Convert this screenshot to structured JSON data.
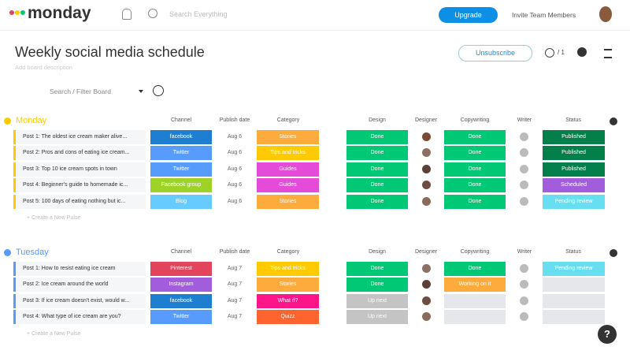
{
  "header": {
    "logo": "monday",
    "search_placeholder": "Search Everything",
    "upgrade": "Upgrade",
    "invite": "Invite Team Members"
  },
  "board": {
    "title": "Weekly social media schedule",
    "description": "Add board description",
    "unsubscribe": "Unsubscribe",
    "subscribers": "/ 1",
    "filter_placeholder": "Search / Filter Board"
  },
  "groups": [
    {
      "name": "Monday",
      "color": "#ffcb00",
      "columns": [
        "Channel",
        "Publish date",
        "Category",
        "Design",
        "Designer",
        "Copywriting",
        "Writer",
        "Status"
      ],
      "add": "+ Create a New Pulse",
      "rows": [
        {
          "name": "Post 1: The oldest ice cream maker alive...",
          "channel": {
            "text": "facebook",
            "color": "#1e7fd1"
          },
          "date": "Aug 6",
          "category": {
            "text": "Stories",
            "color": "#fdab3d"
          },
          "design": {
            "text": "Done",
            "color": "#00c875"
          },
          "copywriting": {
            "text": "Done",
            "color": "#00c875"
          },
          "status": {
            "text": "Published",
            "color": "#037f4c"
          }
        },
        {
          "name": "Post 2: Pros and cons of eating ice cream...",
          "channel": {
            "text": "Twitter",
            "color": "#579bfc"
          },
          "date": "Aug 6",
          "category": {
            "text": "Tips and tricks",
            "color": "#ffcb00"
          },
          "design": {
            "text": "Done",
            "color": "#00c875"
          },
          "copywriting": {
            "text": "Done",
            "color": "#00c875"
          },
          "status": {
            "text": "Published",
            "color": "#037f4c"
          }
        },
        {
          "name": "Post 3: Top 10 ice cream spots in town",
          "channel": {
            "text": "Twitter",
            "color": "#579bfc"
          },
          "date": "Aug 6",
          "category": {
            "text": "Guides",
            "color": "#e44bd8"
          },
          "design": {
            "text": "Done",
            "color": "#00c875"
          },
          "copywriting": {
            "text": "Done",
            "color": "#00c875"
          },
          "status": {
            "text": "Published",
            "color": "#037f4c"
          }
        },
        {
          "name": "Post 4: Beginner's guide to homemade ic...",
          "channel": {
            "text": "Facebook group",
            "color": "#9cd326"
          },
          "date": "Aug 6",
          "category": {
            "text": "Guides",
            "color": "#e44bd8"
          },
          "design": {
            "text": "Done",
            "color": "#00c875"
          },
          "copywriting": {
            "text": "Done",
            "color": "#00c875"
          },
          "status": {
            "text": "Scheduled",
            "color": "#a25ddc"
          }
        },
        {
          "name": "Post 5: 100 days of eating nothing but ic...",
          "channel": {
            "text": "Blog",
            "color": "#66ccff"
          },
          "date": "Aug 6",
          "category": {
            "text": "Stories",
            "color": "#fdab3d"
          },
          "design": {
            "text": "Done",
            "color": "#00c875"
          },
          "copywriting": {
            "text": "Done",
            "color": "#00c875"
          },
          "status": {
            "text": "Pending review",
            "color": "#68dff0"
          }
        }
      ]
    },
    {
      "name": "Tuesday",
      "color": "#579bfc",
      "columns": [
        "Channel",
        "Publish date",
        "Category",
        "Design",
        "Designer",
        "Copywriting",
        "Writer",
        "Status"
      ],
      "add": "+ Create a New Pulse",
      "rows": [
        {
          "name": "Post 1: How to resist eating ice cream",
          "channel": {
            "text": "Pinterest",
            "color": "#e2445c"
          },
          "date": "Aug 7",
          "category": {
            "text": "Tips and tricks",
            "color": "#ffcb00"
          },
          "design": {
            "text": "Done",
            "color": "#00c875"
          },
          "copywriting": {
            "text": "Done",
            "color": "#00c875"
          },
          "status": {
            "text": "Pending review",
            "color": "#68dff0"
          }
        },
        {
          "name": "Post 2: Ice cream around the world",
          "channel": {
            "text": "Instagram",
            "color": "#a25ddc"
          },
          "date": "Aug 7",
          "category": {
            "text": "Stories",
            "color": "#fdab3d"
          },
          "design": {
            "text": "Done",
            "color": "#00c875"
          },
          "copywriting": {
            "text": "Working on it",
            "color": "#fdab3d"
          },
          "status": {
            "color": "#e6e7ea"
          }
        },
        {
          "name": "Post 3: If ice cream doesn't exist, would w...",
          "channel": {
            "text": "facebook",
            "color": "#1e7fd1"
          },
          "date": "Aug 7",
          "category": {
            "text": "What if?",
            "color": "#ff158a"
          },
          "design": {
            "text": "Up next",
            "color": "#c4c4c4"
          },
          "copywriting": {
            "color": "#e6e7ea"
          },
          "status": {
            "color": "#e6e7ea"
          }
        },
        {
          "name": "Post 4: What type of ice cream are you?",
          "channel": {
            "text": "Twitter",
            "color": "#579bfc"
          },
          "date": "Aug 7",
          "category": {
            "text": "Quizz",
            "color": "#ff642e"
          },
          "design": {
            "text": "Up next",
            "color": "#c4c4c4"
          },
          "copywriting": {
            "color": "#e6e7ea"
          },
          "status": {
            "color": "#e6e7ea"
          }
        }
      ]
    }
  ],
  "help": "?"
}
